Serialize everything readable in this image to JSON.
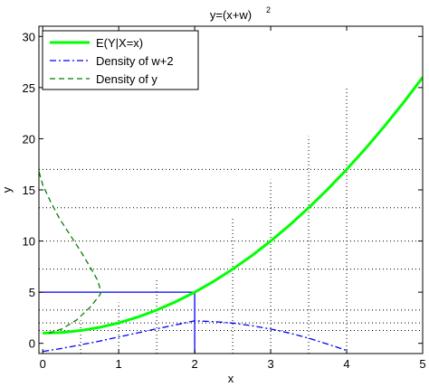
{
  "chart_data": {
    "type": "line",
    "title": "y=(x+w)",
    "title_superscript": "2",
    "xlabel": "x",
    "ylabel": "y",
    "xlim": [
      -0.05,
      5
    ],
    "ylim": [
      -1,
      31
    ],
    "xticks": [
      0,
      1,
      2,
      3,
      4,
      5
    ],
    "yticks": [
      0,
      5,
      10,
      15,
      20,
      25,
      30
    ],
    "grid": false,
    "legend_position": "top-left",
    "series": [
      {
        "name": "E(Y|X=x)",
        "style": "solid",
        "color": "#00ff00",
        "x": [
          0,
          0.25,
          0.5,
          0.75,
          1,
          1.25,
          1.5,
          1.75,
          2,
          2.25,
          2.5,
          2.75,
          3,
          3.25,
          3.5,
          3.75,
          4,
          4.25,
          4.5,
          4.75,
          5
        ],
        "y": [
          1,
          1.06,
          1.25,
          1.56,
          2,
          2.56,
          3.25,
          4.06,
          5,
          6.06,
          7.25,
          8.56,
          10,
          11.56,
          13.25,
          15.06,
          17,
          19.06,
          21.25,
          23.56,
          26
        ]
      },
      {
        "name": "Density of w+2",
        "style": "dashdot",
        "color": "#0000ff",
        "x": [
          0,
          0.25,
          0.5,
          0.75,
          1,
          1.25,
          1.5,
          1.75,
          2,
          2.25,
          2.5,
          2.75,
          3,
          3.25,
          3.5,
          3.75,
          4
        ],
        "y": [
          -0.8,
          -0.5,
          -0.15,
          0.22,
          0.62,
          1.02,
          1.42,
          1.8,
          2.2,
          2.12,
          1.98,
          1.72,
          1.4,
          1.0,
          0.5,
          -0.08,
          -0.7
        ]
      },
      {
        "name": "Density of y",
        "style": "dashed",
        "color": "#008000",
        "x": [
          0.08,
          0.25,
          0.45,
          0.62,
          0.74,
          0.77,
          0.72,
          0.62,
          0.5,
          0.36,
          0.22,
          0.1,
          0.0,
          -0.05
        ],
        "y": [
          1,
          1.4,
          2.3,
          3.5,
          4.6,
          5.0,
          6.2,
          7.5,
          9.0,
          10.6,
          12.2,
          13.9,
          15.5,
          16.8
        ]
      }
    ],
    "guides": {
      "color_dotted": "#000000",
      "color_highlight": "#0000ff",
      "highlight_x": 2,
      "highlight_y": 5,
      "dotted_x": [
        0.5,
        1,
        1.5,
        2.5,
        3,
        3.5,
        4
      ],
      "dotted_y": [
        1.25,
        2,
        3.25,
        7.25,
        10,
        13.25,
        17
      ]
    }
  }
}
